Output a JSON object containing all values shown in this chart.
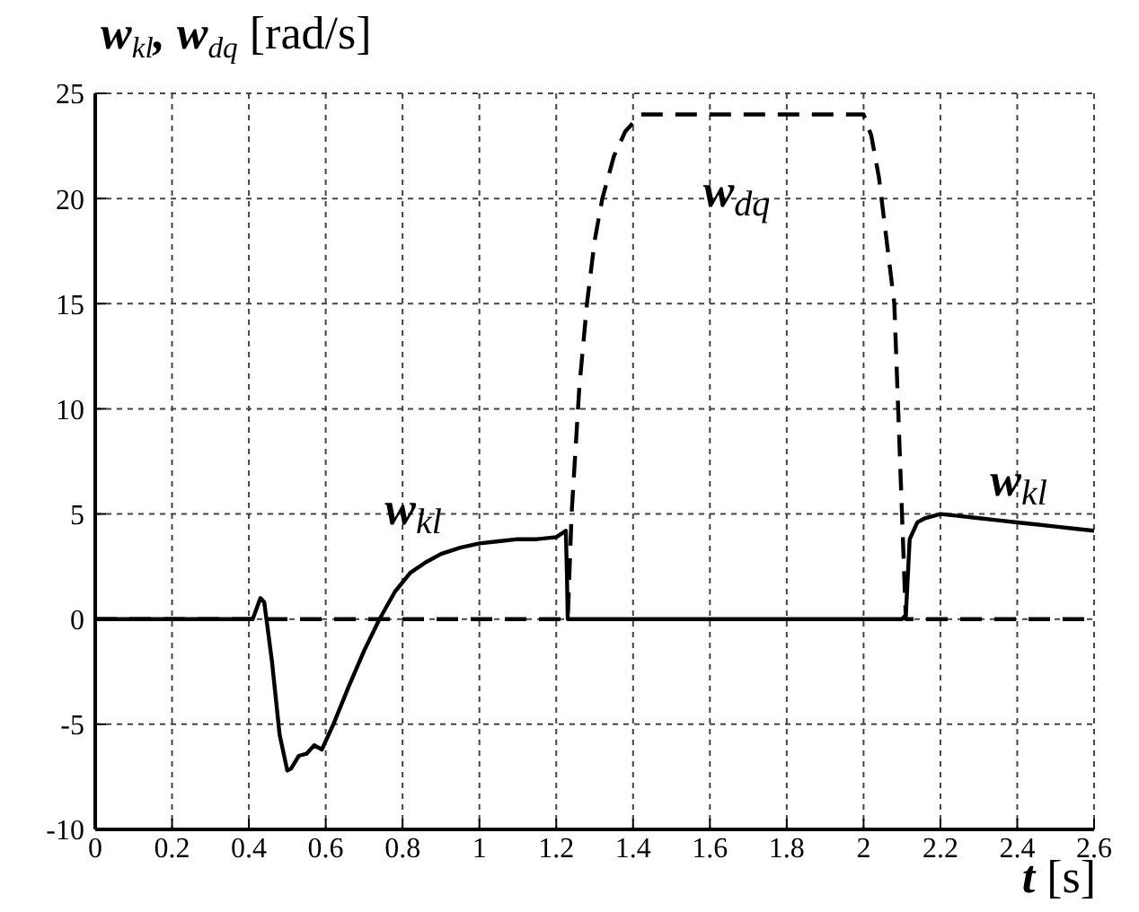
{
  "chart_data": {
    "type": "line",
    "ylabel": "w$_{kl}$, w$_{dq}$ [rad/s]",
    "xlabel": "t [s]",
    "xlim": [
      0,
      2.6
    ],
    "xticks": [
      0,
      0.2,
      0.4,
      0.6,
      0.8,
      1,
      1.2,
      1.4,
      1.6,
      1.8,
      2,
      2.2,
      2.4,
      2.6
    ],
    "ylim": [
      -10,
      25
    ],
    "yticks": [
      -10,
      -5,
      0,
      5,
      10,
      15,
      20,
      25
    ],
    "grid": true,
    "marker": "none",
    "series": [
      {
        "color": "#000000",
        "line_style": "solid",
        "x": [
          0,
          0.41,
          0.43,
          0.44,
          0.46,
          0.48,
          0.5,
          0.51,
          0.53,
          0.55,
          0.57,
          0.59,
          0.62,
          0.66,
          0.7,
          0.74,
          0.78,
          0.82,
          0.86,
          0.9,
          0.95,
          1,
          1.05,
          1.1,
          1.15,
          1.2,
          1.225,
          1.228,
          1.23,
          2.1,
          2.11,
          2.12,
          2.14,
          2.16,
          2.2,
          2.25,
          2.3,
          2.35,
          2.4,
          2.45,
          2.5,
          2.55,
          2.6
        ],
        "values": [
          0,
          0,
          1,
          0.8,
          -2,
          -5.5,
          -7.2,
          -7.1,
          -6.5,
          -6.4,
          -6,
          -6.2,
          -5,
          -3.2,
          -1.5,
          0,
          1.3,
          2.2,
          2.7,
          3.1,
          3.4,
          3.6,
          3.7,
          3.8,
          3.8,
          3.9,
          4.2,
          2,
          0,
          0,
          0.2,
          3.8,
          4.6,
          4.8,
          5,
          4.9,
          4.8,
          4.7,
          4.6,
          4.5,
          4.4,
          4.3,
          4.2
        ]
      },
      {
        "color": "#000000",
        "line_style": "dashed",
        "x": [
          0,
          1.23,
          1.24,
          1.25,
          1.26,
          1.28,
          1.3,
          1.32,
          1.35,
          1.38,
          1.42,
          1.5,
          1.6,
          1.7,
          1.8,
          1.9,
          2,
          2.02,
          2.04,
          2.06,
          2.08,
          2.09,
          2.1,
          2.11,
          2.6
        ],
        "values": [
          0,
          0,
          5,
          8,
          11,
          15,
          18,
          20,
          22,
          23.2,
          24,
          24,
          24,
          24,
          24,
          24,
          24,
          23,
          21,
          18,
          15,
          10,
          5,
          0,
          0
        ]
      }
    ],
    "annotations": [
      "w$_{kl}$",
      "w$_{dq}$",
      "w$_{kl}$"
    ]
  }
}
